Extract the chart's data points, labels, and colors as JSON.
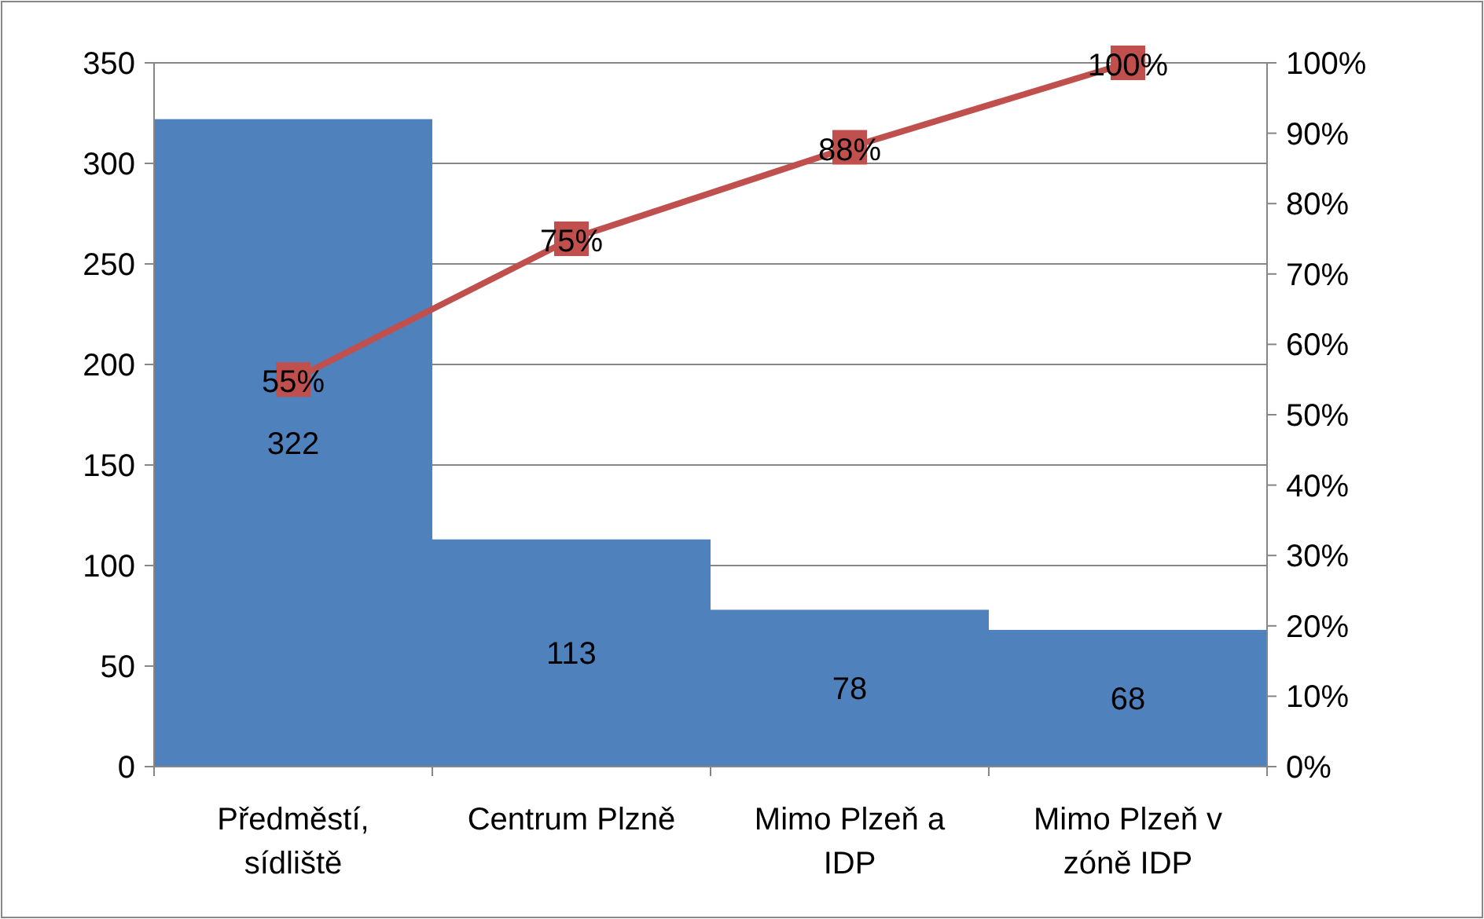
{
  "chart_data": {
    "type": "bar",
    "categories": [
      "Předměstí, sídliště",
      "Centrum Plzně",
      "Mimo Plzeň a IDP",
      "Mimo Plzeň v zóně IDP"
    ],
    "series": [
      {
        "color": "#4f81bd",
        "values": [
          322,
          113,
          78,
          68
        ]
      },
      {
        "type": "line",
        "axis": "y2",
        "color": "#c0504d",
        "values": [
          55,
          75,
          88,
          100
        ],
        "value_labels": [
          "55%",
          "75%",
          "88%",
          "100%"
        ]
      }
    ],
    "ylim": [
      0,
      350
    ],
    "yticks": [
      0,
      50,
      100,
      150,
      200,
      250,
      300,
      350
    ],
    "y2lim": [
      0,
      100
    ],
    "y2ticks": [
      {
        "value": 0,
        "label": "0%"
      },
      {
        "value": 10,
        "label": "10%"
      },
      {
        "value": 20,
        "label": "20%"
      },
      {
        "value": 30,
        "label": "30%"
      },
      {
        "value": 40,
        "label": "40%"
      },
      {
        "value": 50,
        "label": "50%"
      },
      {
        "value": 60,
        "label": "60%"
      },
      {
        "value": 70,
        "label": "70%"
      },
      {
        "value": 80,
        "label": "80%"
      },
      {
        "value": 90,
        "label": "90%"
      },
      {
        "value": 100,
        "label": "100%"
      }
    ],
    "grid": "y",
    "marker": "square",
    "data_labels": true
  }
}
